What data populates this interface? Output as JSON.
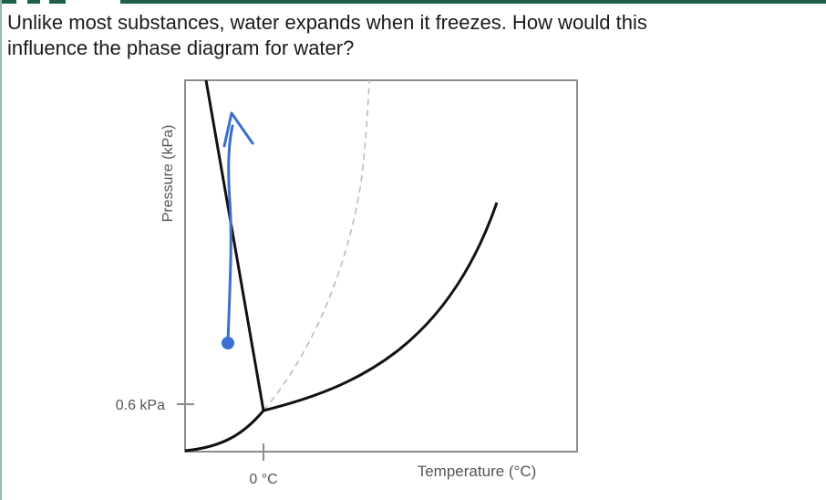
{
  "question": {
    "line1": "Unlike most substances, water expands when it freezes. How would this",
    "line2": "influence the phase diagram for water?"
  },
  "diagram": {
    "type": "phase-diagram",
    "y_axis_label": "Pressure (kPa)",
    "x_axis_label": "Temperature (°C)",
    "y_tick_label": "0.6 kPa",
    "x_tick_label": "0 °C",
    "colors": {
      "frame": "#8c8c8c",
      "curve": "#111111",
      "dashed": "#bdbdbd",
      "annotation": "#3a6fd0"
    }
  }
}
